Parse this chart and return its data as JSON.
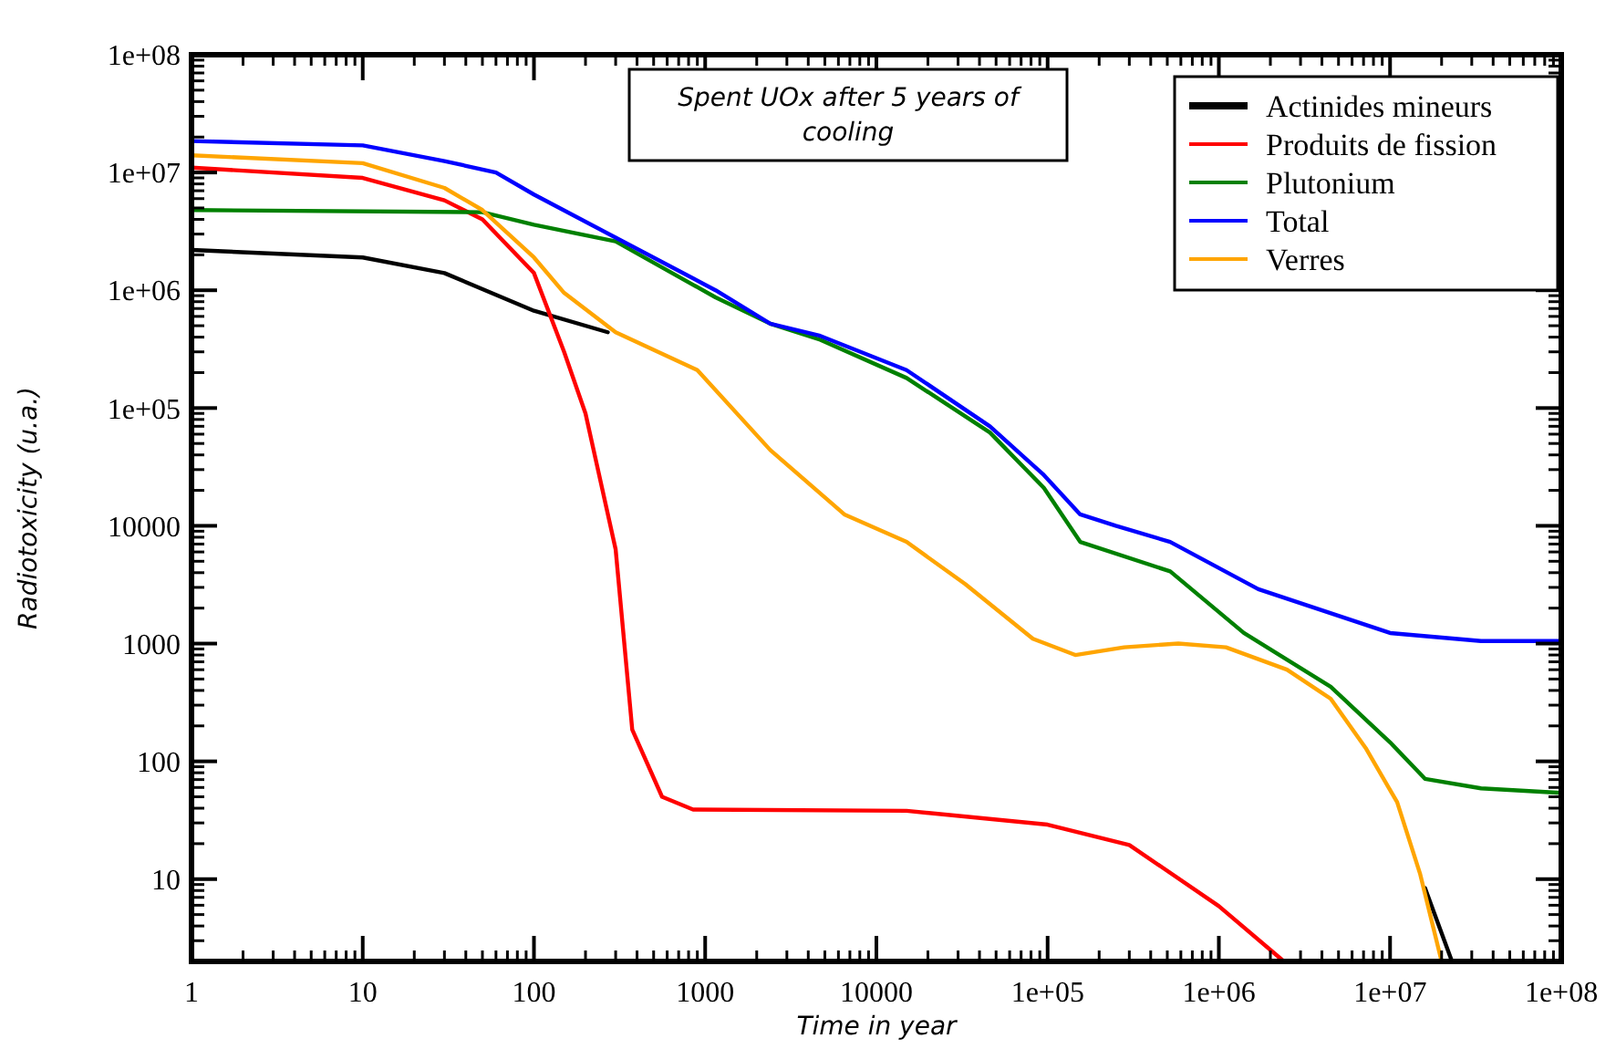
{
  "chart_data": {
    "type": "line",
    "xlabel": "Time in year",
    "ylabel": "Radiotoxicity (u.a.)",
    "log": "xy",
    "grid": false,
    "legend": "top right",
    "marker": "none",
    "line_style": "solid",
    "xlim": [
      1,
      100000000
    ],
    "ylim": [
      2,
      100000000
    ],
    "xticks": [
      1,
      10,
      100,
      1000,
      10000,
      {
        "value": 100000,
        "label": "1e+05"
      },
      {
        "value": 1000000,
        "label": "1e+06"
      },
      {
        "value": 10000000,
        "label": "1e+07"
      },
      {
        "value": 100000000,
        "label": "1e+08"
      }
    ],
    "yticks": [
      10,
      100,
      1000,
      10000,
      {
        "value": 100000,
        "label": "1e+05"
      },
      {
        "value": 1000000,
        "label": "1e+06"
      },
      {
        "value": 10000000,
        "label": "1e+07"
      },
      {
        "value": 100000000,
        "label": "1e+08"
      }
    ],
    "annotations": [
      "Spent UOx after 5 years of cooling"
    ],
    "series": [
      {
        "name": "Actinides mineurs",
        "color": "#000000",
        "x": [
          1,
          10,
          30,
          100,
          270,
          300,
          16000000,
          23000000
        ],
        "values": [
          2200000,
          1900000,
          1400000,
          670000,
          440000,
          null,
          8.4,
          2
        ]
      },
      {
        "name": "Produits de fission",
        "color": "#ff0000",
        "x": [
          1,
          10,
          30,
          50,
          100,
          150,
          200,
          300,
          375,
          560,
          850,
          15000,
          100000,
          300000,
          1000000,
          2400000
        ],
        "values": [
          11000000,
          9000000,
          5800000,
          4000000,
          1400000,
          300000,
          90000,
          6300,
          186,
          50,
          39,
          38,
          29,
          19.5,
          5.9,
          2
        ]
      },
      {
        "name": "Plutonium",
        "color": "#008000",
        "x": [
          1,
          50,
          100,
          300,
          1150,
          2400,
          4700,
          15000,
          46000,
          95000,
          155000,
          520000,
          1400000,
          4500000,
          10000000,
          16000000,
          34000000,
          100000000
        ],
        "values": [
          4800000,
          4600000,
          3600000,
          2600000,
          870000,
          520000,
          380000,
          180000,
          62000,
          21000,
          7300,
          4100,
          1230,
          430,
          145,
          71,
          59,
          54
        ]
      },
      {
        "name": "Total",
        "color": "#0000ff",
        "x": [
          1,
          10,
          30,
          60,
          100,
          300,
          1150,
          2400,
          4700,
          15000,
          46000,
          95000,
          155000,
          250000,
          520000,
          1700000,
          10000000,
          34000000,
          100000000
        ],
        "values": [
          18500000,
          17000000,
          12500000,
          10000000,
          6500000,
          2800000,
          1000000,
          520000,
          410000,
          210000,
          70000,
          27000,
          12500,
          10000,
          7300,
          2900,
          1230,
          1050,
          1050
        ]
      },
      {
        "name": "Verres",
        "color": "#ffa500",
        "x": [
          1,
          10,
          30,
          50,
          100,
          150,
          300,
          900,
          2400,
          6500,
          15000,
          33000,
          82000,
          145000,
          280000,
          580000,
          1100000,
          2500000,
          4500000,
          7200000,
          11000000,
          15000000,
          20000000
        ],
        "values": [
          14000000,
          12000000,
          7400000,
          4800000,
          1900000,
          950000,
          440000,
          210000,
          44000,
          12500,
          7300,
          3200,
          1100,
          800,
          930,
          1000,
          930,
          600,
          340,
          130,
          45,
          11,
          2
        ]
      }
    ]
  }
}
